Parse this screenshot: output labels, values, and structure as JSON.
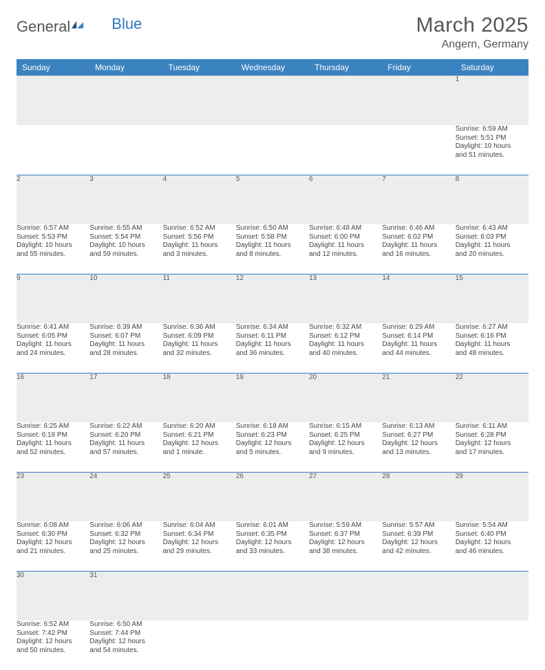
{
  "logo": {
    "text1": "General",
    "text2": "Blue"
  },
  "title": "March 2025",
  "location": "Angern, Germany",
  "colors": {
    "header_bg": "#3b83c0",
    "header_text": "#ffffff",
    "daynum_bg": "#eceded",
    "row_border": "#2f78bf",
    "body_text": "#444444",
    "page_bg": "#ffffff",
    "logo_blue": "#2f78bf",
    "title_color": "#555555"
  },
  "weekdays": [
    "Sunday",
    "Monday",
    "Tuesday",
    "Wednesday",
    "Thursday",
    "Friday",
    "Saturday"
  ],
  "weeks": [
    [
      null,
      null,
      null,
      null,
      null,
      null,
      {
        "n": "1",
        "sr": "6:59 AM",
        "ss": "5:51 PM",
        "d1": "10 hours",
        "d2": "and 51 minutes."
      }
    ],
    [
      {
        "n": "2",
        "sr": "6:57 AM",
        "ss": "5:53 PM",
        "d1": "10 hours",
        "d2": "and 55 minutes."
      },
      {
        "n": "3",
        "sr": "6:55 AM",
        "ss": "5:54 PM",
        "d1": "10 hours",
        "d2": "and 59 minutes."
      },
      {
        "n": "4",
        "sr": "6:52 AM",
        "ss": "5:56 PM",
        "d1": "11 hours",
        "d2": "and 3 minutes."
      },
      {
        "n": "5",
        "sr": "6:50 AM",
        "ss": "5:58 PM",
        "d1": "11 hours",
        "d2": "and 8 minutes."
      },
      {
        "n": "6",
        "sr": "6:48 AM",
        "ss": "6:00 PM",
        "d1": "11 hours",
        "d2": "and 12 minutes."
      },
      {
        "n": "7",
        "sr": "6:46 AM",
        "ss": "6:02 PM",
        "d1": "11 hours",
        "d2": "and 16 minutes."
      },
      {
        "n": "8",
        "sr": "6:43 AM",
        "ss": "6:03 PM",
        "d1": "11 hours",
        "d2": "and 20 minutes."
      }
    ],
    [
      {
        "n": "9",
        "sr": "6:41 AM",
        "ss": "6:05 PM",
        "d1": "11 hours",
        "d2": "and 24 minutes."
      },
      {
        "n": "10",
        "sr": "6:39 AM",
        "ss": "6:07 PM",
        "d1": "11 hours",
        "d2": "and 28 minutes."
      },
      {
        "n": "11",
        "sr": "6:36 AM",
        "ss": "6:09 PM",
        "d1": "11 hours",
        "d2": "and 32 minutes."
      },
      {
        "n": "12",
        "sr": "6:34 AM",
        "ss": "6:11 PM",
        "d1": "11 hours",
        "d2": "and 36 minutes."
      },
      {
        "n": "13",
        "sr": "6:32 AM",
        "ss": "6:12 PM",
        "d1": "11 hours",
        "d2": "and 40 minutes."
      },
      {
        "n": "14",
        "sr": "6:29 AM",
        "ss": "6:14 PM",
        "d1": "11 hours",
        "d2": "and 44 minutes."
      },
      {
        "n": "15",
        "sr": "6:27 AM",
        "ss": "6:16 PM",
        "d1": "11 hours",
        "d2": "and 48 minutes."
      }
    ],
    [
      {
        "n": "16",
        "sr": "6:25 AM",
        "ss": "6:18 PM",
        "d1": "11 hours",
        "d2": "and 52 minutes."
      },
      {
        "n": "17",
        "sr": "6:22 AM",
        "ss": "6:20 PM",
        "d1": "11 hours",
        "d2": "and 57 minutes."
      },
      {
        "n": "18",
        "sr": "6:20 AM",
        "ss": "6:21 PM",
        "d1": "12 hours",
        "d2": "and 1 minute."
      },
      {
        "n": "19",
        "sr": "6:18 AM",
        "ss": "6:23 PM",
        "d1": "12 hours",
        "d2": "and 5 minutes."
      },
      {
        "n": "20",
        "sr": "6:15 AM",
        "ss": "6:25 PM",
        "d1": "12 hours",
        "d2": "and 9 minutes."
      },
      {
        "n": "21",
        "sr": "6:13 AM",
        "ss": "6:27 PM",
        "d1": "12 hours",
        "d2": "and 13 minutes."
      },
      {
        "n": "22",
        "sr": "6:11 AM",
        "ss": "6:28 PM",
        "d1": "12 hours",
        "d2": "and 17 minutes."
      }
    ],
    [
      {
        "n": "23",
        "sr": "6:08 AM",
        "ss": "6:30 PM",
        "d1": "12 hours",
        "d2": "and 21 minutes."
      },
      {
        "n": "24",
        "sr": "6:06 AM",
        "ss": "6:32 PM",
        "d1": "12 hours",
        "d2": "and 25 minutes."
      },
      {
        "n": "25",
        "sr": "6:04 AM",
        "ss": "6:34 PM",
        "d1": "12 hours",
        "d2": "and 29 minutes."
      },
      {
        "n": "26",
        "sr": "6:01 AM",
        "ss": "6:35 PM",
        "d1": "12 hours",
        "d2": "and 33 minutes."
      },
      {
        "n": "27",
        "sr": "5:59 AM",
        "ss": "6:37 PM",
        "d1": "12 hours",
        "d2": "and 38 minutes."
      },
      {
        "n": "28",
        "sr": "5:57 AM",
        "ss": "6:39 PM",
        "d1": "12 hours",
        "d2": "and 42 minutes."
      },
      {
        "n": "29",
        "sr": "5:54 AM",
        "ss": "6:40 PM",
        "d1": "12 hours",
        "d2": "and 46 minutes."
      }
    ],
    [
      {
        "n": "30",
        "sr": "6:52 AM",
        "ss": "7:42 PM",
        "d1": "12 hours",
        "d2": "and 50 minutes."
      },
      {
        "n": "31",
        "sr": "6:50 AM",
        "ss": "7:44 PM",
        "d1": "12 hours",
        "d2": "and 54 minutes."
      },
      null,
      null,
      null,
      null,
      null
    ]
  ],
  "labels": {
    "sunrise": "Sunrise:",
    "sunset": "Sunset:",
    "daylight": "Daylight:"
  }
}
